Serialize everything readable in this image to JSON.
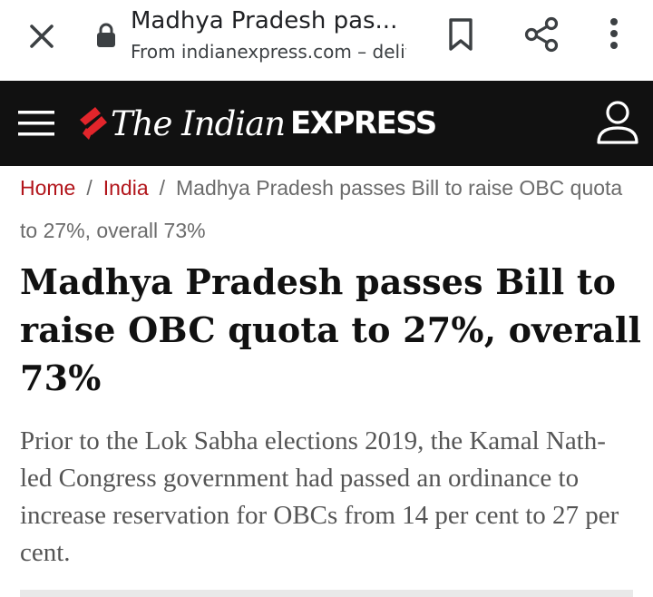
{
  "browser": {
    "title": "Madhya Pradesh pas...",
    "url": "From indianexpress.com – deliv",
    "icons": [
      "close-icon",
      "lock-icon",
      "bookmark-icon",
      "share-icon",
      "more-vert-icon"
    ]
  },
  "site": {
    "logo_the": "The Indian",
    "logo_express": "EXPRESS",
    "colors": {
      "header_bg": "#111111",
      "accent": "#e2252b",
      "link": "#b2151b"
    }
  },
  "breadcrumb": {
    "home": "Home",
    "separator": "/",
    "section": "India",
    "current": "Madhya Pradesh passes Bill to raise OBC quota to 27%, overall 73%"
  },
  "article": {
    "headline": "Madhya Pradesh passes Bill to raise OBC quota to 27%, overall 73%",
    "summary": "Prior to the Lok Sabha elections 2019, the Kamal Nath-led Congress government had passed an ordinance to increase reservation for OBCs from 14 per cent to 27 per cent."
  }
}
